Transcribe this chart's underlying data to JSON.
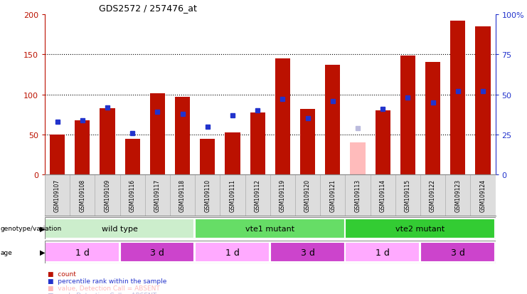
{
  "title": "GDS2572 / 257476_at",
  "samples": [
    "GSM109107",
    "GSM109108",
    "GSM109109",
    "GSM109116",
    "GSM109117",
    "GSM109118",
    "GSM109110",
    "GSM109111",
    "GSM109112",
    "GSM109119",
    "GSM109120",
    "GSM109121",
    "GSM109113",
    "GSM109114",
    "GSM109115",
    "GSM109122",
    "GSM109123",
    "GSM109124"
  ],
  "counts": [
    50,
    68,
    83,
    45,
    101,
    97,
    45,
    53,
    77,
    145,
    82,
    137,
    null,
    80,
    148,
    140,
    192,
    185
  ],
  "ranks": [
    33,
    34,
    42,
    26,
    39,
    38,
    30,
    37,
    40,
    47,
    35,
    46,
    null,
    41,
    48,
    45,
    52,
    52
  ],
  "absent_value": [
    null,
    null,
    null,
    null,
    null,
    null,
    null,
    null,
    null,
    null,
    null,
    null,
    40,
    null,
    null,
    null,
    null,
    null
  ],
  "absent_rank": [
    null,
    null,
    null,
    null,
    null,
    null,
    null,
    null,
    null,
    null,
    null,
    null,
    29,
    null,
    null,
    null,
    null,
    null
  ],
  "bar_color": "#bb1100",
  "rank_color": "#2233cc",
  "absent_bar_color": "#ffbbbb",
  "absent_rank_color": "#bbbbdd",
  "plot_bg": "#ffffff",
  "fig_bg": "#ffffff",
  "ylim_left": [
    0,
    200
  ],
  "ylim_right": [
    0,
    100
  ],
  "yticks_left": [
    0,
    50,
    100,
    150,
    200
  ],
  "ytick_labels_right": [
    "0",
    "25",
    "50",
    "75",
    "100%"
  ],
  "genotype_groups": [
    {
      "label": "wild type",
      "start": 0,
      "end": 6,
      "color": "#cceecc"
    },
    {
      "label": "vte1 mutant",
      "start": 6,
      "end": 12,
      "color": "#66dd66"
    },
    {
      "label": "vte2 mutant",
      "start": 12,
      "end": 18,
      "color": "#33cc33"
    }
  ],
  "age_groups": [
    {
      "label": "1 d",
      "start": 0,
      "end": 3,
      "color": "#ffaaff"
    },
    {
      "label": "3 d",
      "start": 3,
      "end": 6,
      "color": "#cc44cc"
    },
    {
      "label": "1 d",
      "start": 6,
      "end": 9,
      "color": "#ffaaff"
    },
    {
      "label": "3 d",
      "start": 9,
      "end": 12,
      "color": "#cc44cc"
    },
    {
      "label": "1 d",
      "start": 12,
      "end": 15,
      "color": "#ffaaff"
    },
    {
      "label": "3 d",
      "start": 15,
      "end": 18,
      "color": "#cc44cc"
    }
  ],
  "legend_items": [
    {
      "color": "#bb1100",
      "label": "count"
    },
    {
      "color": "#2233cc",
      "label": "percentile rank within the sample"
    },
    {
      "color": "#ffbbbb",
      "label": "value, Detection Call = ABSENT"
    },
    {
      "color": "#bbbbdd",
      "label": "rank, Detection Call = ABSENT"
    }
  ]
}
